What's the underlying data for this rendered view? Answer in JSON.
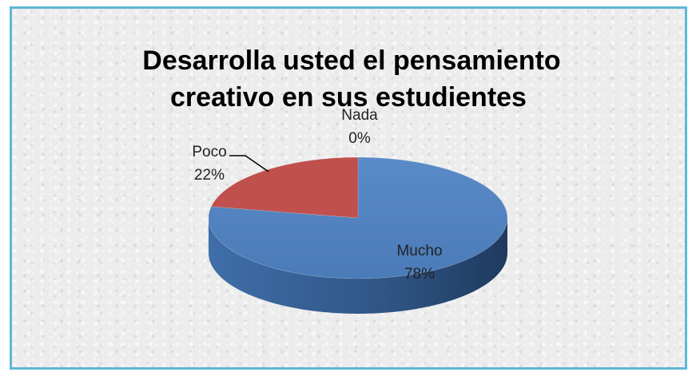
{
  "chart_data": {
    "type": "pie",
    "title_lines": [
      "Desarrolla usted el pensamiento",
      "creativo en sus estudientes"
    ],
    "categories": [
      "Mucho",
      "Poco",
      "Nada"
    ],
    "values": [
      78,
      22,
      0
    ],
    "value_labels": [
      "78%",
      "22%",
      "0%"
    ],
    "colors": [
      "#4f81bd",
      "#c0504d",
      "#9bbb59"
    ],
    "legend": "none",
    "three_d": true
  }
}
